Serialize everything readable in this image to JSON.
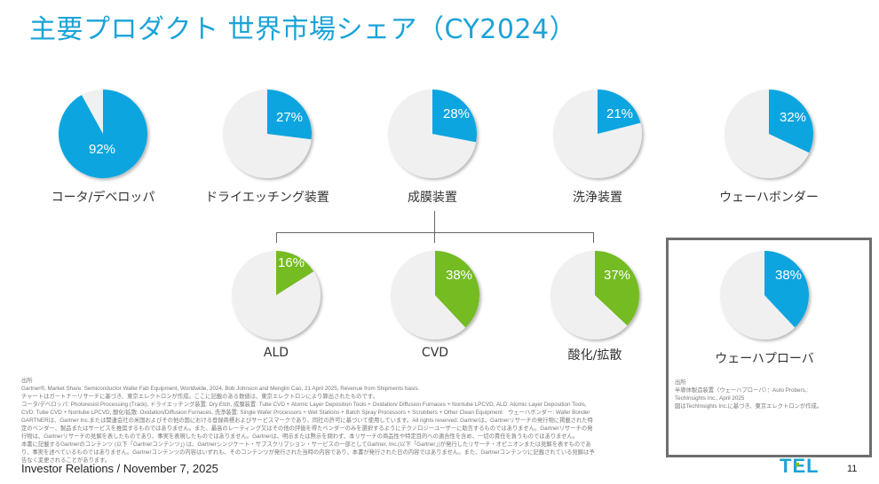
{
  "title": "主要プロダクト 世界市場シェア（CY2024）",
  "colors": {
    "blue": "#0ea5df",
    "green": "#74bb23",
    "rest": "#f0f0f0",
    "title": "#1aa3d8"
  },
  "chart_data": {
    "type": "pie",
    "title": "主要プロダクト 世界市場シェア（CY2024）",
    "series": [
      {
        "name": "コータ/デベロッパ",
        "value": 92,
        "label": "92%",
        "color": "#0ea5df"
      },
      {
        "name": "ドライエッチング装置",
        "value": 27,
        "label": "27%",
        "color": "#0ea5df"
      },
      {
        "name": "成膜装置",
        "value": 28,
        "label": "28%",
        "color": "#0ea5df"
      },
      {
        "name": "洗浄装置",
        "value": 21,
        "label": "21%",
        "color": "#0ea5df"
      },
      {
        "name": "ウェーハボンダー",
        "value": 32,
        "label": "32%",
        "color": "#0ea5df"
      },
      {
        "name": "ALD",
        "value": 16,
        "label": "16%",
        "color": "#74bb23",
        "parent": "成膜装置"
      },
      {
        "name": "CVD",
        "value": 38,
        "label": "38%",
        "color": "#74bb23",
        "parent": "成膜装置"
      },
      {
        "name": "酸化/拡散",
        "value": 37,
        "label": "37%",
        "color": "#74bb23",
        "parent": "成膜装置"
      },
      {
        "name": "ウェーハプローバ",
        "value": 38,
        "label": "38%",
        "color": "#0ea5df"
      }
    ]
  },
  "sources": {
    "main": [
      "出所",
      "Gartner®, Market Share: Semiconductor Wafer Fab Equipment, Worldwide, 2024, Bob Johnson and Menglin Cao, 21 April 2025, Revenue from Shipments basis.",
      "チャートはガートナーリサーチに基づき、東京エレクトロンが作成。ここに記載のある数値は、東京エレクトロンにより算出されたものです。",
      "コータ/デベロッパ: Photoresist Processing (Track), ドライエッチング装置: Dry Etch, 成膜装置: Tube CVD + Atomic Layer Deposition Tools + Oxidation/ Diffusion Furnaces + Nontube LPCVD, ALD: Atomic Layer Deposition Tools,",
      "CVD: Tube CVD + Nontube LPCVD, 酸化/拡散: Oxidation/Diffusion Furnaces, 洗浄装置: Single Wafer Processors + Wet Stations + Batch Spray Processors + Scrubbers + Other Clean Equipment　ウェーハボンダー: Wafer Bonder",
      "GARTNERは、Gartner Inc.または関連会社の米国およびその他の国における登録商標およびサービスマークであり、同社の許可に基づいて使用しています。All rights reserved. Gartnerは、Gartnerリサーチの発行物に掲載された特",
      "定のベンダー、製品またはサービスを推奨するものではありません。また、最高のレーティング又はその他の評価を得たベンダーのみを選択するようにテクノロジーユーザーに助言するものではありません。Gartnerリサーチの発",
      "行物は、Gartnerリサーチの見解を表したものであり、事実を表現したものではありません。Gartnerは、明示または黙示を問わず、本リサーチの商品性や特定目的への適合性を含め、一切の責任を負うものではありません。",
      "本書に記載するGartnerのコンテンツ (以下「Gartnerコンテンツ」) は、Gartnerシンジケート・サブスクリプション・サービスの一部としてGartner, Inc.(以下「Gartner」)が発行したリサーチ・オピニオンまたは見解を表すものであ",
      "り、事実を述べているものではありません。Gartnerコンテンツの内容はいずれも、そのコンテンツが発行された当時の内容であり、本書が発行された日の内容ではありません。また、Gartnerコンテンツに記載されている見解は予",
      "告なく変更されることがあります。"
    ],
    "prober": [
      "出所",
      "半導体製造装置（ウェーハプローバ）：Auto Probers,:",
      "TechInsights Inc., April 2025",
      "図はTechInsights Inc.に基づき、東京エレクトロンが作成。"
    ]
  },
  "footer": {
    "text": "Investor Relations / November 7, 2025",
    "logo": "TEL",
    "page": "11"
  }
}
